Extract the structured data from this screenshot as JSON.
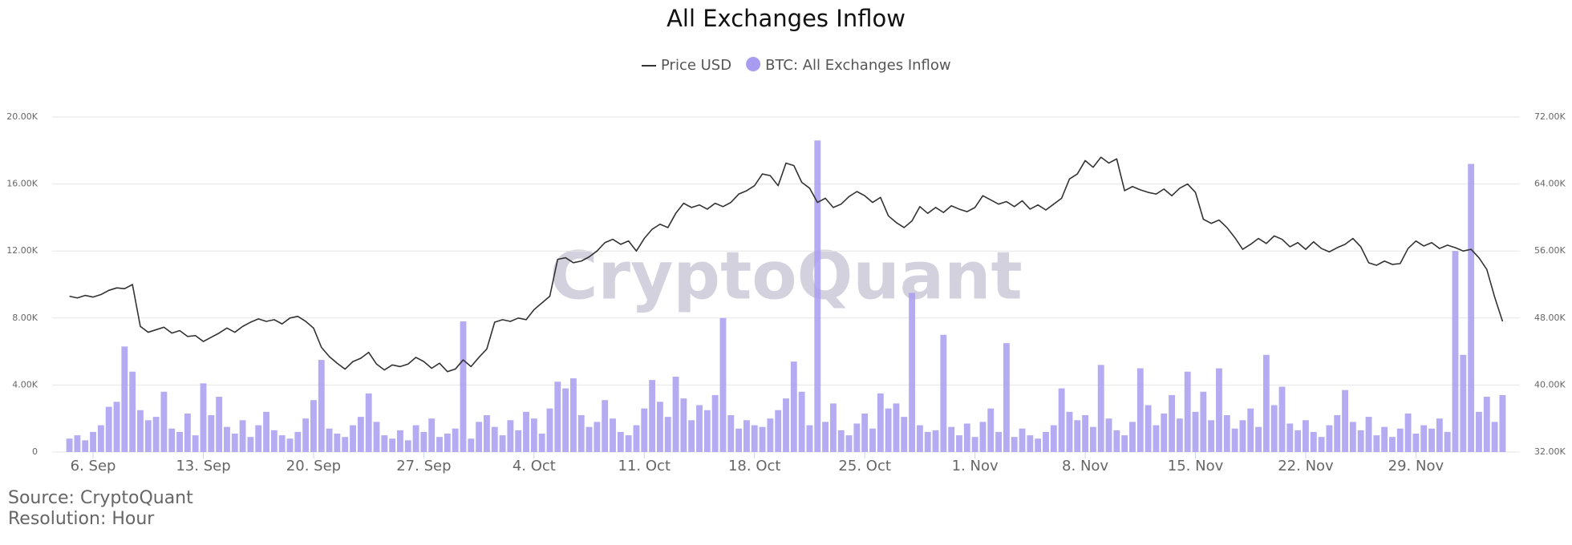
{
  "chart_data": {
    "type": "bar-line",
    "title": "All Exchanges Inflow",
    "watermark": "CryptoQuant",
    "source": "Source: CryptoQuant",
    "resolution": "Resolution: Hour",
    "xlim": [
      -2.6,
      90.6
    ],
    "xticks": [
      {
        "value": 0,
        "label": "6. Sep"
      },
      {
        "value": 7,
        "label": "13. Sep"
      },
      {
        "value": 14,
        "label": "20. Sep"
      },
      {
        "value": 21,
        "label": "27. Sep"
      },
      {
        "value": 28,
        "label": "4. Oct"
      },
      {
        "value": 35,
        "label": "11. Oct"
      },
      {
        "value": 42,
        "label": "18. Oct"
      },
      {
        "value": 49,
        "label": "25. Oct"
      },
      {
        "value": 56,
        "label": "1. Nov"
      },
      {
        "value": 63,
        "label": "8. Nov"
      },
      {
        "value": 70,
        "label": "15. Nov"
      },
      {
        "value": 77,
        "label": "22. Nov"
      },
      {
        "value": 84,
        "label": "29. Nov"
      }
    ],
    "ylim": [
      0,
      20000
    ],
    "yticks": [
      0,
      {
        "value": 4000,
        "label": "4.00K"
      },
      {
        "value": 8000,
        "label": "8.00K"
      },
      {
        "value": 12000,
        "label": "12.00K"
      },
      {
        "value": 16000,
        "label": "16.00K"
      },
      {
        "value": 20000,
        "label": "20.00K"
      }
    ],
    "y2lim": [
      32000,
      72000
    ],
    "y2ticks": [
      {
        "value": 32000,
        "label": "32.00K"
      },
      {
        "value": 40000,
        "label": "40.00K"
      },
      {
        "value": 48000,
        "label": "48.00K"
      },
      {
        "value": 56000,
        "label": "56.00K"
      },
      {
        "value": 64000,
        "label": "64.00K"
      },
      {
        "value": 72000,
        "label": "72.00K"
      }
    ],
    "grid": true,
    "x": [
      -1.5,
      -1,
      -0.5,
      0,
      0.5,
      1,
      1.5,
      2,
      2.5,
      3,
      3.5,
      4,
      4.5,
      5,
      5.5,
      6,
      6.5,
      7,
      7.5,
      8,
      8.5,
      9,
      9.5,
      10,
      10.5,
      11,
      11.5,
      12,
      12.5,
      13,
      13.5,
      14,
      14.5,
      15,
      15.5,
      16,
      16.5,
      17,
      17.5,
      18,
      18.5,
      19,
      19.5,
      20,
      20.5,
      21,
      21.5,
      22,
      22.5,
      23,
      23.5,
      24,
      24.5,
      25,
      25.5,
      26,
      26.5,
      27,
      27.5,
      28,
      28.5,
      29,
      29.5,
      30,
      30.5,
      31,
      31.5,
      32,
      32.5,
      33,
      33.5,
      34,
      34.5,
      35,
      35.5,
      36,
      36.5,
      37,
      37.5,
      38,
      38.5,
      39,
      39.5,
      40,
      40.5,
      41,
      41.5,
      42,
      42.5,
      43,
      43.5,
      44,
      44.5,
      45,
      45.5,
      46,
      46.5,
      47,
      47.5,
      48,
      48.5,
      49,
      49.5,
      50,
      50.5,
      51,
      51.5,
      52,
      52.5,
      53,
      53.5,
      54,
      54.5,
      55,
      55.5,
      56,
      56.5,
      57,
      57.5,
      58,
      58.5,
      59,
      59.5,
      60,
      60.5,
      61,
      61.5,
      62,
      62.5,
      63,
      63.5,
      64,
      64.5,
      65,
      65.5,
      66,
      66.5,
      67,
      67.5,
      68,
      68.5,
      69,
      69.5,
      70,
      70.5,
      71,
      71.5,
      72,
      72.5,
      73,
      73.5,
      74,
      74.5,
      75,
      75.5,
      76,
      76.5,
      77,
      77.5,
      78,
      78.5,
      79,
      79.5,
      80,
      80.5,
      81,
      81.5,
      82,
      82.5,
      83,
      83.5,
      84,
      84.5,
      85,
      85.5,
      86,
      86.5,
      87,
      87.5,
      88,
      88.5,
      89,
      89.5
    ],
    "series": [
      {
        "name": "Price USD",
        "type": "line",
        "axis": "y2",
        "color": "#333333",
        "values": [
          50600,
          50400,
          50700,
          50500,
          50800,
          51300,
          51600,
          51500,
          52000,
          47000,
          46300,
          46600,
          46900,
          46200,
          46500,
          45800,
          45900,
          45200,
          45700,
          46200,
          46800,
          46300,
          47000,
          47500,
          47900,
          47600,
          47800,
          47300,
          48000,
          48200,
          47600,
          46800,
          44500,
          43400,
          42600,
          41900,
          42800,
          43200,
          43900,
          42500,
          41800,
          42400,
          42200,
          42500,
          43300,
          42800,
          42000,
          42600,
          41600,
          41900,
          43000,
          42200,
          43300,
          44300,
          47500,
          47800,
          47600,
          48000,
          47800,
          49000,
          49800,
          50600,
          55000,
          55200,
          54600,
          54800,
          55300,
          56000,
          57000,
          57400,
          56800,
          57200,
          56000,
          57500,
          58600,
          59200,
          58800,
          60500,
          61700,
          61200,
          61500,
          61000,
          61700,
          61300,
          61800,
          62800,
          63200,
          63800,
          65200,
          65000,
          63800,
          66500,
          66200,
          64200,
          63500,
          61800,
          62300,
          61200,
          61600,
          62500,
          63100,
          62600,
          61800,
          62400,
          60200,
          59400,
          58800,
          59600,
          61300,
          60500,
          61200,
          60600,
          61400,
          61000,
          60700,
          61200,
          62600,
          62100,
          61600,
          61900,
          61300,
          62000,
          61000,
          61500,
          60900,
          61600,
          62300,
          64600,
          65200,
          66800,
          66000,
          67200,
          66500,
          67000,
          63200,
          63700,
          63300,
          63000,
          62800,
          63400,
          62600,
          63500,
          64000,
          63000,
          59800,
          59300,
          59700,
          58800,
          57600,
          56200,
          56800,
          57500,
          56900,
          57800,
          57400,
          56500,
          57000,
          56200,
          57100,
          56300,
          55900,
          56400,
          56800,
          57500,
          56500,
          54600,
          54300,
          54800,
          54400,
          54500,
          56300,
          57200,
          56600,
          57000,
          56300,
          56700,
          56400,
          56000,
          56200,
          55200,
          53800,
          50500,
          47600
        ]
      },
      {
        "name": "BTC: All Exchanges Inflow",
        "type": "bar",
        "color": "#a89cf0",
        "values": [
          800,
          1000,
          700,
          1200,
          1600,
          2700,
          3000,
          6300,
          4800,
          2500,
          1900,
          2100,
          3600,
          1400,
          1200,
          2300,
          1000,
          4100,
          2200,
          3300,
          1500,
          1100,
          1900,
          900,
          1600,
          2400,
          1300,
          1000,
          800,
          1200,
          2000,
          3100,
          5500,
          1400,
          1100,
          900,
          1600,
          2100,
          3500,
          1800,
          1000,
          800,
          1300,
          700,
          1600,
          1200,
          2000,
          900,
          1100,
          1400,
          7800,
          800,
          1800,
          2200,
          1500,
          1000,
          1900,
          1300,
          2400,
          2000,
          1100,
          2600,
          4200,
          3800,
          4400,
          2200,
          1500,
          1800,
          3100,
          2000,
          1200,
          1000,
          1600,
          2600,
          4300,
          3000,
          2100,
          4500,
          3200,
          1900,
          2800,
          2500,
          3400,
          8000,
          2200,
          1400,
          1900,
          1600,
          1500,
          2000,
          2500,
          3200,
          5400,
          3600,
          1600,
          18600,
          1800,
          2900,
          1300,
          1000,
          1700,
          2300,
          1400,
          3500,
          2600,
          2900,
          2100,
          9500,
          1600,
          1200,
          1300,
          7000,
          1500,
          1000,
          1700,
          900,
          1800,
          2600,
          1200,
          6500,
          900,
          1400,
          1000,
          800,
          1200,
          1600,
          3800,
          2400,
          1900,
          2200,
          1500,
          5200,
          2000,
          1300,
          1000,
          1800,
          5000,
          2800,
          1600,
          2300,
          3400,
          2000,
          4800,
          2400,
          3600,
          1900,
          5000,
          2200,
          1400,
          1900,
          2600,
          1500,
          5800,
          2800,
          3900,
          1700,
          1300,
          1900,
          1200,
          900,
          1600,
          2200,
          3700,
          1800,
          1300,
          2100,
          1000,
          1500,
          900,
          1400,
          2300,
          1100,
          1600,
          1400,
          2000,
          1200,
          12000,
          5800,
          17200,
          2400,
          3300,
          1800,
          3400
        ]
      }
    ]
  }
}
